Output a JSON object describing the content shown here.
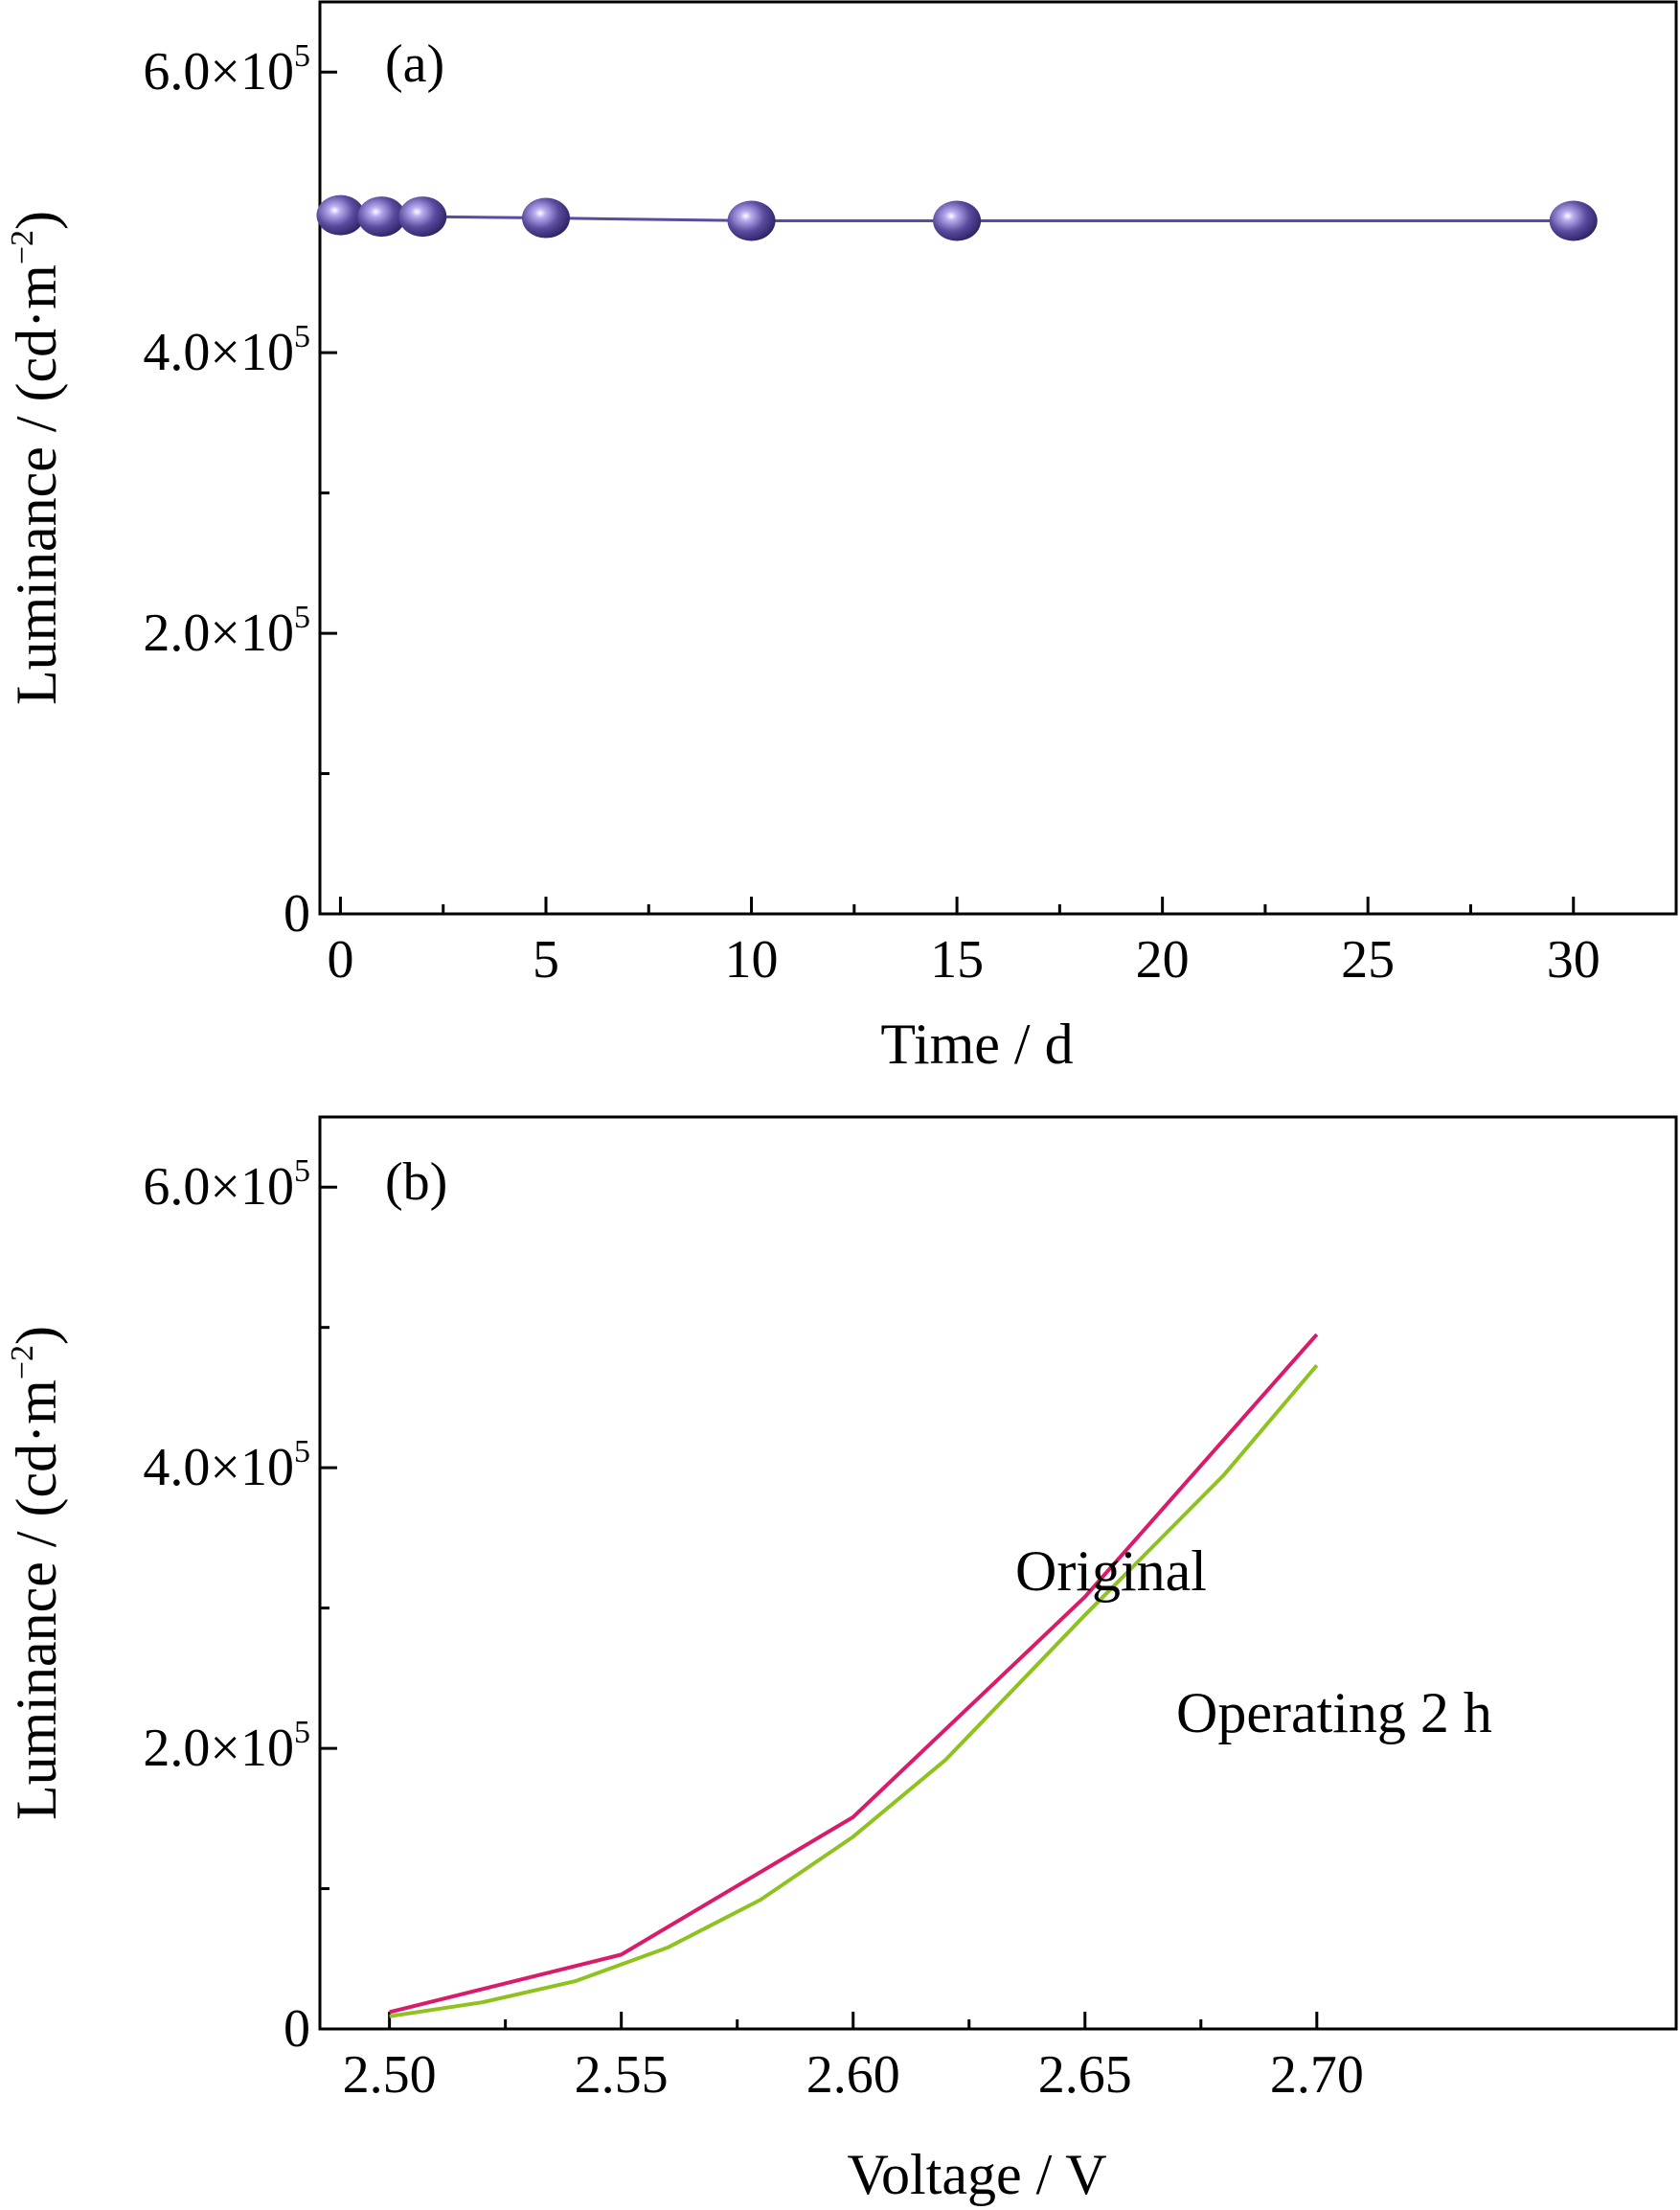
{
  "chart_data": [
    {
      "type": "scatter",
      "panel_label": "(a)",
      "xlabel": "Time / d",
      "ylabel": "Luminance / (cd·m−2)",
      "xlim": [
        -0.5,
        32.5
      ],
      "ylim": [
        0,
        650000
      ],
      "xticks": [
        0,
        5,
        10,
        15,
        20,
        25,
        30
      ],
      "yticks": [
        {
          "value": 0,
          "mantissa": "0",
          "exp": ""
        },
        {
          "value": 200000,
          "mantissa": "2.0×10",
          "exp": "5"
        },
        {
          "value": 400000,
          "mantissa": "4.0×10",
          "exp": "5"
        },
        {
          "value": 600000,
          "mantissa": "6.0×10",
          "exp": "5"
        }
      ],
      "series": [
        {
          "color": "#5b4a9e",
          "x": [
            0,
            1,
            2,
            5,
            10,
            15,
            30
          ],
          "y": [
            498000,
            497000,
            497000,
            496000,
            494000,
            494000,
            494000
          ]
        }
      ]
    },
    {
      "type": "line",
      "panel_label": "(b)",
      "xlabel": "Voltage / V",
      "ylabel": "Luminance / (cd·m−2)",
      "xlim": [
        2.485,
        2.7775
      ],
      "ylim": [
        0,
        650000
      ],
      "xticks": [
        "2.50",
        "2.55",
        "2.60",
        "2.65",
        "2.70"
      ],
      "yticks": [
        {
          "value": 0,
          "mantissa": "0",
          "exp": ""
        },
        {
          "value": 200000,
          "mantissa": "2.0×10",
          "exp": "5"
        },
        {
          "value": 400000,
          "mantissa": "4.0×10",
          "exp": "5"
        },
        {
          "value": 600000,
          "mantissa": "6.0×10",
          "exp": "5"
        }
      ],
      "series": [
        {
          "name": "Original",
          "color": "#d81b6a",
          "x": [
            2.5,
            2.55,
            2.6,
            2.65,
            2.7
          ],
          "y": [
            12000,
            53000,
            151000,
            308000,
            495000
          ]
        },
        {
          "name": "Operating 2 h",
          "color": "#8dc21f",
          "x": [
            2.5,
            2.52,
            2.54,
            2.56,
            2.58,
            2.6,
            2.62,
            2.65,
            2.68,
            2.7
          ],
          "y": [
            9000,
            19000,
            34000,
            58000,
            92000,
            137000,
            192000,
            295000,
            395000,
            473000
          ]
        }
      ]
    }
  ]
}
